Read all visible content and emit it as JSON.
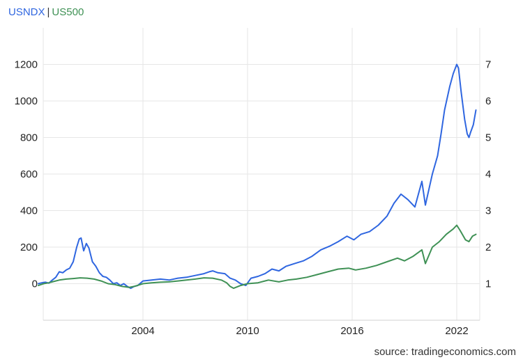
{
  "legend": {
    "separator": "|"
  },
  "source": "source: tradingeconomics.com",
  "colors": {
    "usndx": "#2f66e0",
    "us500": "#3f9155",
    "grid": "#e6e6e6"
  },
  "chart_data": {
    "type": "line",
    "x_tick_labels": [
      "2004",
      "2010",
      "2016",
      "2022"
    ],
    "y_left": {
      "ticks": [
        0,
        200,
        400,
        600,
        800,
        1000,
        1200
      ],
      "range": [
        -200,
        1400
      ]
    },
    "y_right": {
      "ticks": [
        1,
        2,
        3,
        4,
        5,
        6,
        7
      ],
      "range": [
        0,
        8
      ]
    },
    "grid": true,
    "legend_placement": "top-left",
    "series": [
      {
        "name": "USNDX",
        "axis": "left",
        "points": [
          [
            1998.0,
            0
          ],
          [
            1998.2,
            5
          ],
          [
            1998.4,
            8
          ],
          [
            1998.6,
            3
          ],
          [
            1998.8,
            20
          ],
          [
            1999.0,
            35
          ],
          [
            1999.2,
            65
          ],
          [
            1999.4,
            60
          ],
          [
            1999.6,
            75
          ],
          [
            1999.8,
            85
          ],
          [
            2000.0,
            120
          ],
          [
            2000.2,
            200
          ],
          [
            2000.35,
            245
          ],
          [
            2000.45,
            250
          ],
          [
            2000.6,
            180
          ],
          [
            2000.75,
            220
          ],
          [
            2000.9,
            195
          ],
          [
            2001.1,
            120
          ],
          [
            2001.3,
            95
          ],
          [
            2001.5,
            60
          ],
          [
            2001.7,
            40
          ],
          [
            2001.9,
            35
          ],
          [
            2002.1,
            20
          ],
          [
            2002.3,
            0
          ],
          [
            2002.5,
            5
          ],
          [
            2002.7,
            -10
          ],
          [
            2002.9,
            0
          ],
          [
            2003.1,
            -15
          ],
          [
            2003.3,
            -25
          ],
          [
            2003.5,
            -15
          ],
          [
            2003.7,
            -10
          ],
          [
            2004.0,
            15
          ],
          [
            2004.5,
            20
          ],
          [
            2005.0,
            25
          ],
          [
            2005.5,
            20
          ],
          [
            2006.0,
            30
          ],
          [
            2006.5,
            35
          ],
          [
            2007.0,
            45
          ],
          [
            2007.5,
            55
          ],
          [
            2007.8,
            65
          ],
          [
            2008.0,
            70
          ],
          [
            2008.3,
            60
          ],
          [
            2008.7,
            55
          ],
          [
            2009.0,
            30
          ],
          [
            2009.3,
            20
          ],
          [
            2009.6,
            0
          ],
          [
            2009.9,
            -10
          ],
          [
            2010.2,
            30
          ],
          [
            2010.6,
            40
          ],
          [
            2011.0,
            55
          ],
          [
            2011.4,
            80
          ],
          [
            2011.8,
            70
          ],
          [
            2012.2,
            95
          ],
          [
            2012.7,
            110
          ],
          [
            2013.2,
            125
          ],
          [
            2013.7,
            150
          ],
          [
            2014.2,
            185
          ],
          [
            2014.7,
            205
          ],
          [
            2015.2,
            230
          ],
          [
            2015.7,
            260
          ],
          [
            2016.1,
            240
          ],
          [
            2016.5,
            270
          ],
          [
            2017.0,
            285
          ],
          [
            2017.5,
            320
          ],
          [
            2018.0,
            370
          ],
          [
            2018.4,
            440
          ],
          [
            2018.8,
            490
          ],
          [
            2019.2,
            460
          ],
          [
            2019.6,
            420
          ],
          [
            2020.0,
            560
          ],
          [
            2020.2,
            430
          ],
          [
            2020.6,
            600
          ],
          [
            2020.9,
            700
          ],
          [
            2021.1,
            820
          ],
          [
            2021.3,
            950
          ],
          [
            2021.6,
            1080
          ],
          [
            2021.8,
            1150
          ],
          [
            2022.0,
            1200
          ],
          [
            2022.1,
            1180
          ],
          [
            2022.25,
            1050
          ],
          [
            2022.45,
            900
          ],
          [
            2022.6,
            820
          ],
          [
            2022.7,
            800
          ],
          [
            2022.8,
            830
          ],
          [
            2022.95,
            870
          ],
          [
            2023.1,
            950
          ]
        ]
      },
      {
        "name": "US500",
        "axis": "left",
        "points": [
          [
            1998.0,
            -10
          ],
          [
            1998.3,
            0
          ],
          [
            1998.6,
            5
          ],
          [
            1998.8,
            10
          ],
          [
            1999.2,
            20
          ],
          [
            1999.6,
            25
          ],
          [
            2000.0,
            28
          ],
          [
            2000.4,
            32
          ],
          [
            2000.8,
            30
          ],
          [
            2001.2,
            25
          ],
          [
            2001.6,
            15
          ],
          [
            2002.0,
            0
          ],
          [
            2002.4,
            -5
          ],
          [
            2002.8,
            -15
          ],
          [
            2003.2,
            -20
          ],
          [
            2003.5,
            -15
          ],
          [
            2004.0,
            0
          ],
          [
            2004.5,
            5
          ],
          [
            2005.0,
            8
          ],
          [
            2005.5,
            10
          ],
          [
            2006.0,
            15
          ],
          [
            2006.5,
            20
          ],
          [
            2007.0,
            25
          ],
          [
            2007.5,
            32
          ],
          [
            2008.0,
            30
          ],
          [
            2008.5,
            20
          ],
          [
            2008.8,
            5
          ],
          [
            2009.0,
            -15
          ],
          [
            2009.2,
            -25
          ],
          [
            2009.6,
            -10
          ],
          [
            2010.0,
            0
          ],
          [
            2010.6,
            5
          ],
          [
            2011.2,
            20
          ],
          [
            2011.8,
            10
          ],
          [
            2012.3,
            20
          ],
          [
            2012.8,
            25
          ],
          [
            2013.4,
            35
          ],
          [
            2014.0,
            50
          ],
          [
            2014.6,
            65
          ],
          [
            2015.2,
            80
          ],
          [
            2015.8,
            85
          ],
          [
            2016.2,
            75
          ],
          [
            2016.8,
            85
          ],
          [
            2017.4,
            100
          ],
          [
            2018.0,
            120
          ],
          [
            2018.6,
            140
          ],
          [
            2019.0,
            125
          ],
          [
            2019.5,
            150
          ],
          [
            2020.0,
            185
          ],
          [
            2020.2,
            110
          ],
          [
            2020.6,
            200
          ],
          [
            2021.0,
            230
          ],
          [
            2021.4,
            270
          ],
          [
            2021.8,
            300
          ],
          [
            2022.0,
            320
          ],
          [
            2022.2,
            290
          ],
          [
            2022.5,
            240
          ],
          [
            2022.7,
            230
          ],
          [
            2022.9,
            260
          ],
          [
            2023.1,
            270
          ]
        ]
      }
    ]
  }
}
